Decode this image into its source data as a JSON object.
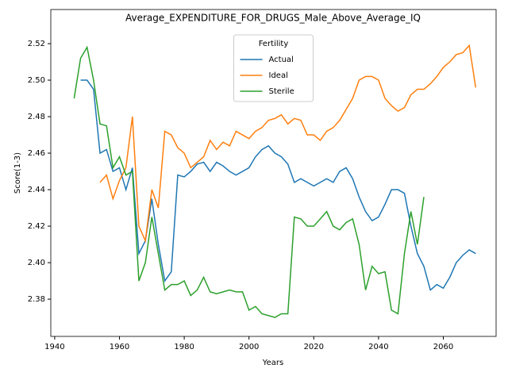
{
  "chart_data": {
    "type": "line",
    "title": "Average_EXPENDITURE_FOR_DRUGS_Male_Above_Average_IQ",
    "xlabel": "Years",
    "ylabel": "Score(1-3)",
    "legend_title": "Fertility",
    "legend": "upper center",
    "x": [
      1946,
      1948,
      1950,
      1952,
      1954,
      1956,
      1958,
      1960,
      1962,
      1964,
      1966,
      1968,
      1970,
      1972,
      1974,
      1976,
      1978,
      1980,
      1982,
      1984,
      1986,
      1988,
      1990,
      1992,
      1994,
      1996,
      1998,
      2000,
      2002,
      2004,
      2006,
      2008,
      2010,
      2012,
      2014,
      2016,
      2018,
      2020,
      2022,
      2024,
      2026,
      2028,
      2030,
      2032,
      2034,
      2036,
      2038,
      2040,
      2042,
      2044,
      2046,
      2048,
      2050,
      2052,
      2054,
      2056,
      2058,
      2060,
      2062,
      2064,
      2066,
      2068,
      2070
    ],
    "series": [
      {
        "name": "Actual",
        "color": "#1f77b4",
        "values": [
          null,
          2.5,
          2.5,
          2.495,
          2.46,
          2.462,
          2.45,
          2.452,
          2.44,
          2.452,
          2.405,
          2.412,
          2.435,
          2.41,
          2.39,
          2.395,
          2.448,
          2.447,
          2.45,
          2.454,
          2.455,
          2.45,
          2.455,
          2.453,
          2.45,
          2.448,
          2.45,
          2.452,
          2.458,
          2.462,
          2.464,
          2.46,
          2.458,
          2.454,
          2.444,
          2.446,
          2.444,
          2.442,
          2.444,
          2.446,
          2.444,
          2.45,
          2.452,
          2.446,
          2.436,
          2.428,
          2.423,
          2.425,
          2.432,
          2.44,
          2.44,
          2.438,
          2.42,
          2.405,
          2.398,
          2.385,
          2.388,
          2.386,
          2.392,
          2.4,
          2.404,
          2.407,
          2.405
        ]
      },
      {
        "name": "Ideal",
        "color": "#ff7f0e",
        "values": [
          null,
          null,
          null,
          null,
          2.444,
          2.448,
          2.435,
          2.445,
          2.452,
          2.48,
          2.42,
          2.412,
          2.44,
          2.43,
          2.472,
          2.47,
          2.463,
          2.46,
          2.452,
          2.455,
          2.458,
          2.467,
          2.462,
          2.466,
          2.464,
          2.472,
          2.47,
          2.468,
          2.472,
          2.474,
          2.478,
          2.479,
          2.481,
          2.476,
          2.479,
          2.478,
          2.47,
          2.47,
          2.467,
          2.472,
          2.474,
          2.478,
          2.484,
          2.49,
          2.5,
          2.502,
          2.502,
          2.5,
          2.49,
          2.486,
          2.483,
          2.485,
          2.492,
          2.495,
          2.495,
          2.498,
          2.502,
          2.507,
          2.51,
          2.514,
          2.515,
          2.519,
          2.496
        ]
      },
      {
        "name": "Sterile",
        "color": "#2ca02c",
        "values": [
          2.49,
          2.512,
          2.518,
          2.5,
          2.476,
          2.475,
          2.452,
          2.458,
          2.448,
          2.45,
          2.39,
          2.4,
          2.425,
          2.405,
          2.385,
          2.388,
          2.388,
          2.39,
          2.382,
          2.385,
          2.392,
          2.384,
          2.383,
          2.384,
          2.385,
          2.384,
          2.384,
          2.374,
          2.376,
          2.372,
          2.371,
          2.37,
          2.372,
          2.372,
          2.425,
          2.424,
          2.42,
          2.42,
          2.424,
          2.428,
          2.42,
          2.418,
          2.422,
          2.424,
          2.41,
          2.385,
          2.398,
          2.394,
          2.395,
          2.374,
          2.372,
          2.405,
          2.428,
          2.41,
          2.436,
          null,
          null,
          null,
          null,
          null,
          null,
          null,
          null
        ]
      }
    ],
    "xlim": [
      1938.8,
      2076.3
    ],
    "xticks": [
      1940,
      1960,
      1980,
      2000,
      2020,
      2040,
      2060
    ],
    "ylim": [
      2.3596,
      2.5387
    ],
    "yticks": [
      2.38,
      {
        "value": 2.4,
        "label": "2.40"
      },
      2.42,
      2.44,
      2.46,
      2.48,
      {
        "value": 2.5,
        "label": "2.50"
      },
      2.52
    ]
  }
}
